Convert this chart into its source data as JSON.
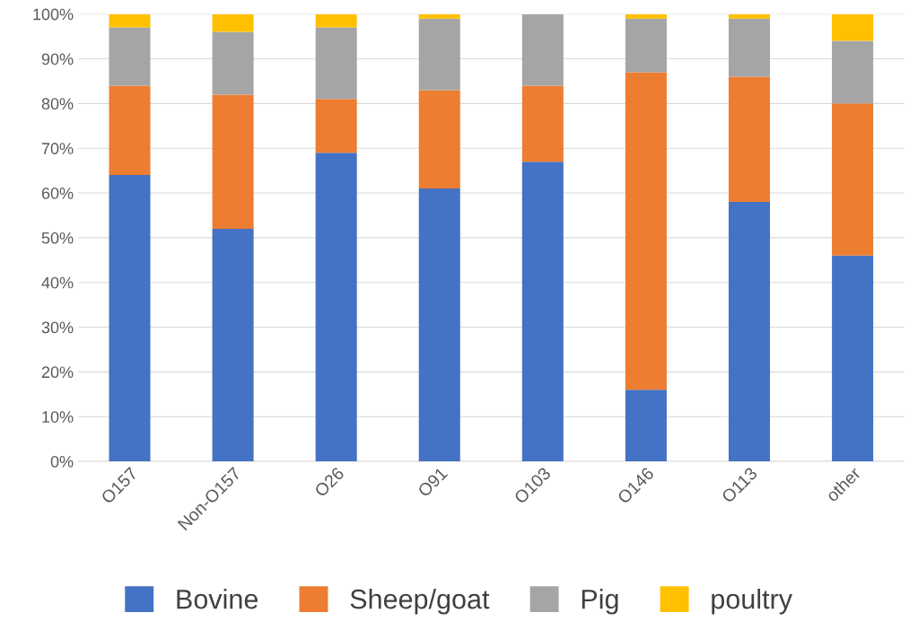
{
  "chart_data": {
    "type": "bar",
    "stacked": true,
    "categories": [
      "O157",
      "Non-O157",
      "O26",
      "O91",
      "O103",
      "O146",
      "O113",
      "other"
    ],
    "series": [
      {
        "name": "Bovine",
        "color": "#4472c4",
        "values": [
          64,
          52,
          69,
          61,
          67,
          16,
          58,
          46
        ]
      },
      {
        "name": "Sheep/goat",
        "color": "#ed7d31",
        "values": [
          20,
          30,
          12,
          22,
          17,
          71,
          28,
          34
        ]
      },
      {
        "name": "Pig",
        "color": "#a5a5a5",
        "values": [
          13,
          14,
          16,
          16,
          16,
          12,
          13,
          14
        ]
      },
      {
        "name": "poultry",
        "color": "#ffc000",
        "values": [
          3,
          4,
          3,
          1,
          0,
          1,
          1,
          6
        ]
      }
    ],
    "ylim": [
      0,
      100
    ],
    "yticks": [
      {
        "value": 0,
        "label": "0%"
      },
      {
        "value": 10,
        "label": "10%"
      },
      {
        "value": 20,
        "label": "20%"
      },
      {
        "value": 30,
        "label": "30%"
      },
      {
        "value": 40,
        "label": "40%"
      },
      {
        "value": 50,
        "label": "50%"
      },
      {
        "value": 60,
        "label": "60%"
      },
      {
        "value": 70,
        "label": "70%"
      },
      {
        "value": 80,
        "label": "80%"
      },
      {
        "value": 90,
        "label": "90%"
      },
      {
        "value": 100,
        "label": "100%"
      }
    ],
    "grid": "y",
    "legend": "bottom"
  }
}
